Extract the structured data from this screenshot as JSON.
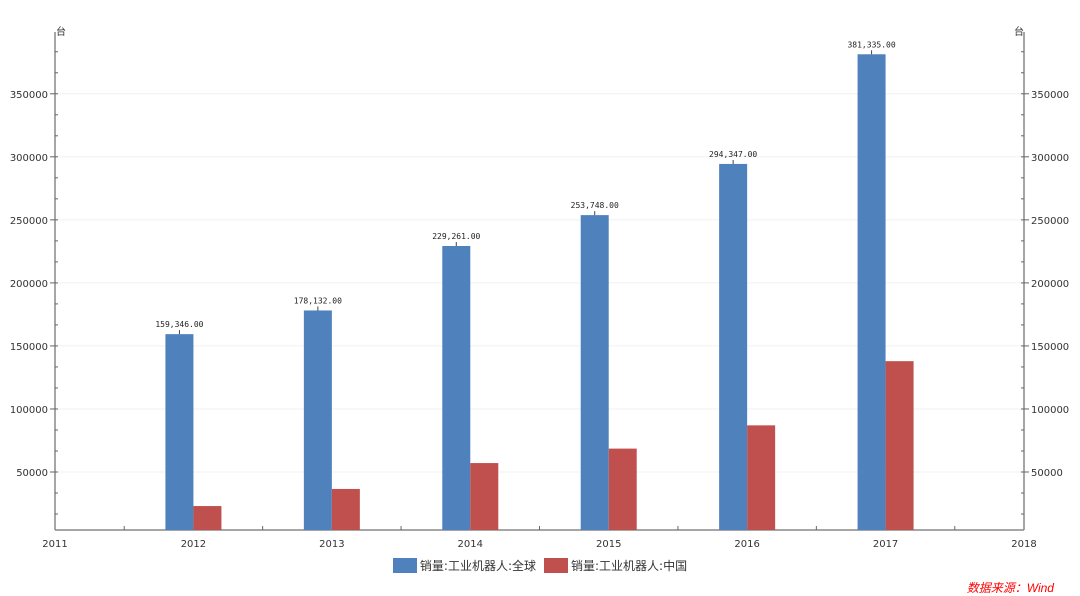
{
  "chart_data": {
    "type": "bar",
    "title": "",
    "x": [
      2012,
      2013,
      2014,
      2015,
      2016,
      2017
    ],
    "x_ticks": [
      "2011",
      "2012",
      "2013",
      "2014",
      "2015",
      "2016",
      "2017",
      "2018"
    ],
    "xlim": [
      2011,
      2018
    ],
    "ylim": [
      4000,
      399000
    ],
    "y_ticks": [
      50000,
      100000,
      150000,
      200000,
      250000,
      300000,
      350000
    ],
    "y_unit_left": "台",
    "y_unit_right": "台",
    "grid": "horizontal-light",
    "legend_placement": "bottom",
    "series": [
      {
        "name": "销量:工业机器人:全球",
        "color": "#4f81bd",
        "values": [
          159346,
          178132,
          229261,
          253748,
          294347,
          381335
        ],
        "labels": [
          "159,346.00",
          "178,132.00",
          "229,261.00",
          "253,748.00",
          "294,347.00",
          "381,335.00"
        ]
      },
      {
        "name": "销量:工业机器人:中国",
        "color": "#c0504d",
        "values": [
          22987,
          36560,
          57096,
          68556,
          87000,
          137920
        ]
      }
    ]
  },
  "source": {
    "text": "数据来源：Wind",
    "color": "#ff0000"
  }
}
